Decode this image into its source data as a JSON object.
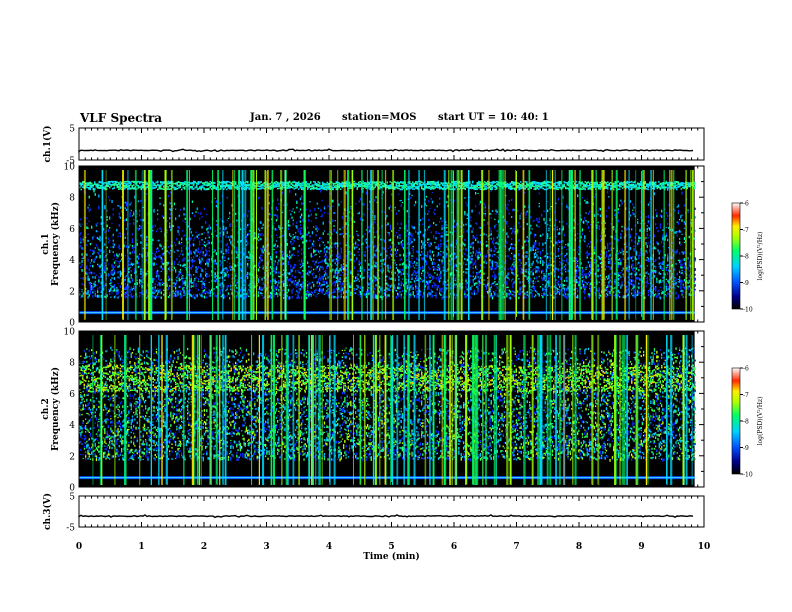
{
  "header": {
    "title": "VLF Spectra",
    "date": "Jan. 7 , 2026",
    "station": "station=MOS",
    "start_ut": "start UT =  10: 40: 1"
  },
  "chart_data": [
    {
      "type": "line",
      "name": "ch1-voltage",
      "ylabel": "ch.1(V)",
      "ylim": [
        -5,
        5
      ],
      "yticks": [
        "5",
        "-5"
      ],
      "level": -2
    },
    {
      "type": "heatmap",
      "name": "ch1-spectrogram",
      "ylabel_line1": "ch.1",
      "ylabel_line2": "Frequency (kHz)",
      "ylim": [
        0,
        10
      ],
      "yticks": [
        "0",
        "2",
        "4",
        "6",
        "8",
        "10"
      ],
      "colorbar": {
        "label": "log(PSD)(V²/Hz)",
        "range": [
          -10,
          -6
        ],
        "ticks": [
          "-6",
          "-7",
          "-8",
          "-9",
          "-10"
        ]
      },
      "band_top_khz": 9.2,
      "band_low_khz": 1.6
    },
    {
      "type": "heatmap",
      "name": "ch2-spectrogram",
      "ylabel_line1": "ch.2",
      "ylabel_line2": "Frequency (kHz)",
      "ylim": [
        0,
        10
      ],
      "yticks": [
        "0",
        "2",
        "4",
        "6",
        "8",
        "10"
      ],
      "colorbar": {
        "label": "log(PSD)(V²/Hz)",
        "range": [
          -10,
          -6
        ],
        "ticks": [
          "-6",
          "-7",
          "-8",
          "-9",
          "-10"
        ]
      },
      "band_top_khz": 9.0,
      "band_low_khz": 1.8
    },
    {
      "type": "line",
      "name": "ch3-voltage",
      "ylabel": "ch.3(V)",
      "ylim": [
        -5,
        5
      ],
      "yticks": [
        "5",
        "-5"
      ],
      "level": -1.5
    }
  ],
  "x_axis": {
    "label": "Time (min)",
    "xlim": [
      0,
      10
    ],
    "ticks": [
      "0",
      "1",
      "2",
      "3",
      "4",
      "5",
      "6",
      "7",
      "8",
      "9",
      "10"
    ],
    "data_end_min": 9.85
  }
}
